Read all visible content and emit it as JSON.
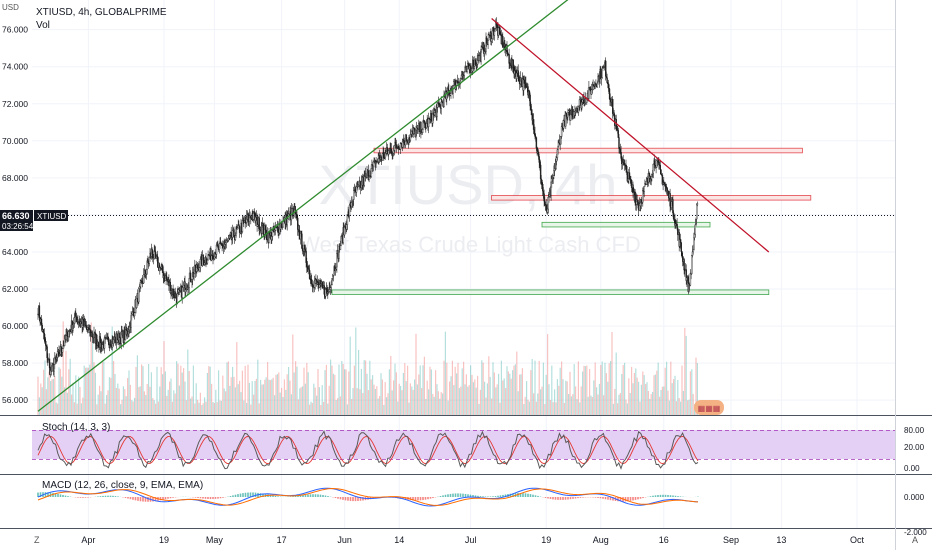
{
  "header": {
    "currency": "USD",
    "symbol_line": "XTIUSD, 4h, GLOBALPRIME",
    "vol_label": "Vol"
  },
  "watermark": {
    "symbol": "XTIUSD, 4h",
    "description": "West Texas Crude Light Cash CFD"
  },
  "price_axis": {
    "labels": [
      "76.000",
      "74.000",
      "72.000",
      "70.000",
      "68.000",
      "66.000",
      "64.000",
      "62.000",
      "60.000",
      "58.000",
      "56.000"
    ],
    "current_price": "66.630",
    "current_symbol": "XTIUSD",
    "countdown": "03:26:54"
  },
  "time_axis": {
    "labels": [
      "Apr",
      "19",
      "May",
      "17",
      "Jun",
      "14",
      "Jul",
      "19",
      "Aug",
      "16",
      "Sep",
      "13",
      "Oct"
    ]
  },
  "stoch": {
    "legend": "Stoch (14, 3, 3)",
    "levels": [
      "80.00",
      "20.00",
      "0.00"
    ]
  },
  "macd": {
    "legend": "MACD (12, 26, close, 9, EMA, EMA)",
    "levels": [
      "0.000",
      "-2.000"
    ]
  },
  "corner": {
    "left": "Z",
    "right": "A"
  },
  "colors": {
    "up": "#26a69a",
    "down": "#ef5350",
    "stoch_band": "#9c27b0",
    "trend_up": "#2e8b2e",
    "trend_down": "#c0132a"
  },
  "chart_data": {
    "type": "candlestick",
    "title": "XTIUSD, 4h, GLOBALPRIME",
    "y_range": [
      55.2,
      77.6
    ],
    "anchors": [
      {
        "x": "Mar 20",
        "close": 61.0
      },
      {
        "x": "Mar 23",
        "close": 57.5
      },
      {
        "x": "Mar 29",
        "close": 60.5
      },
      {
        "x": "Apr 4",
        "close": 59.0
      },
      {
        "x": "Apr 10",
        "close": 59.5
      },
      {
        "x": "Apr 16",
        "close": 64.0
      },
      {
        "x": "Apr 22",
        "close": 61.5
      },
      {
        "x": "Apr 28",
        "close": 63.5
      },
      {
        "x": "May 4",
        "close": 64.5
      },
      {
        "x": "May 10",
        "close": 66.0
      },
      {
        "x": "May 14",
        "close": 64.8
      },
      {
        "x": "May 20",
        "close": 66.2
      },
      {
        "x": "May 24",
        "close": 62.5
      },
      {
        "x": "May 28",
        "close": 61.8
      },
      {
        "x": "Jun 3",
        "close": 67.0
      },
      {
        "x": "Jun 9",
        "close": 69.0
      },
      {
        "x": "Jun 15",
        "close": 70.0
      },
      {
        "x": "Jun 21",
        "close": 71.0
      },
      {
        "x": "Jun 27",
        "close": 73.0
      },
      {
        "x": "Jul 3",
        "close": 74.5
      },
      {
        "x": "Jul 7",
        "close": 76.2
      },
      {
        "x": "Jul 11",
        "close": 74.0
      },
      {
        "x": "Jul 15",
        "close": 72.5
      },
      {
        "x": "Jul 19",
        "close": 66.0
      },
      {
        "x": "Jul 23",
        "close": 71.0
      },
      {
        "x": "Jul 29",
        "close": 72.5
      },
      {
        "x": "Aug 2",
        "close": 74.0
      },
      {
        "x": "Aug 6",
        "close": 69.0
      },
      {
        "x": "Aug 10",
        "close": 66.5
      },
      {
        "x": "Aug 14",
        "close": 69.0
      },
      {
        "x": "Aug 18",
        "close": 66.5
      },
      {
        "x": "Aug 22",
        "close": 62.0
      },
      {
        "x": "Aug 24",
        "close": 66.6
      }
    ],
    "trendlines": [
      {
        "name": "support-trendline",
        "from": [
          "Mar 20",
          55.4
        ],
        "to": [
          "Aug 1",
          79.0
        ]
      },
      {
        "name": "resistance-trendline",
        "from": [
          "Jul 6",
          76.6
        ],
        "to": [
          "Sep 10",
          64.0
        ]
      }
    ],
    "zones": [
      {
        "kind": "resistance",
        "from": "Jun 8",
        "to": "Sep 18",
        "low": 69.35,
        "high": 69.6
      },
      {
        "kind": "resistance",
        "from": "Jul 6",
        "to": "Sep 20",
        "low": 66.8,
        "high": 67.05
      },
      {
        "kind": "support",
        "from": "Jul 18",
        "to": "Aug 27",
        "low": 65.35,
        "high": 65.6
      },
      {
        "kind": "support",
        "from": "May 29",
        "to": "Sep 10",
        "low": 61.7,
        "high": 61.95
      }
    ],
    "current_price": 66.63
  }
}
